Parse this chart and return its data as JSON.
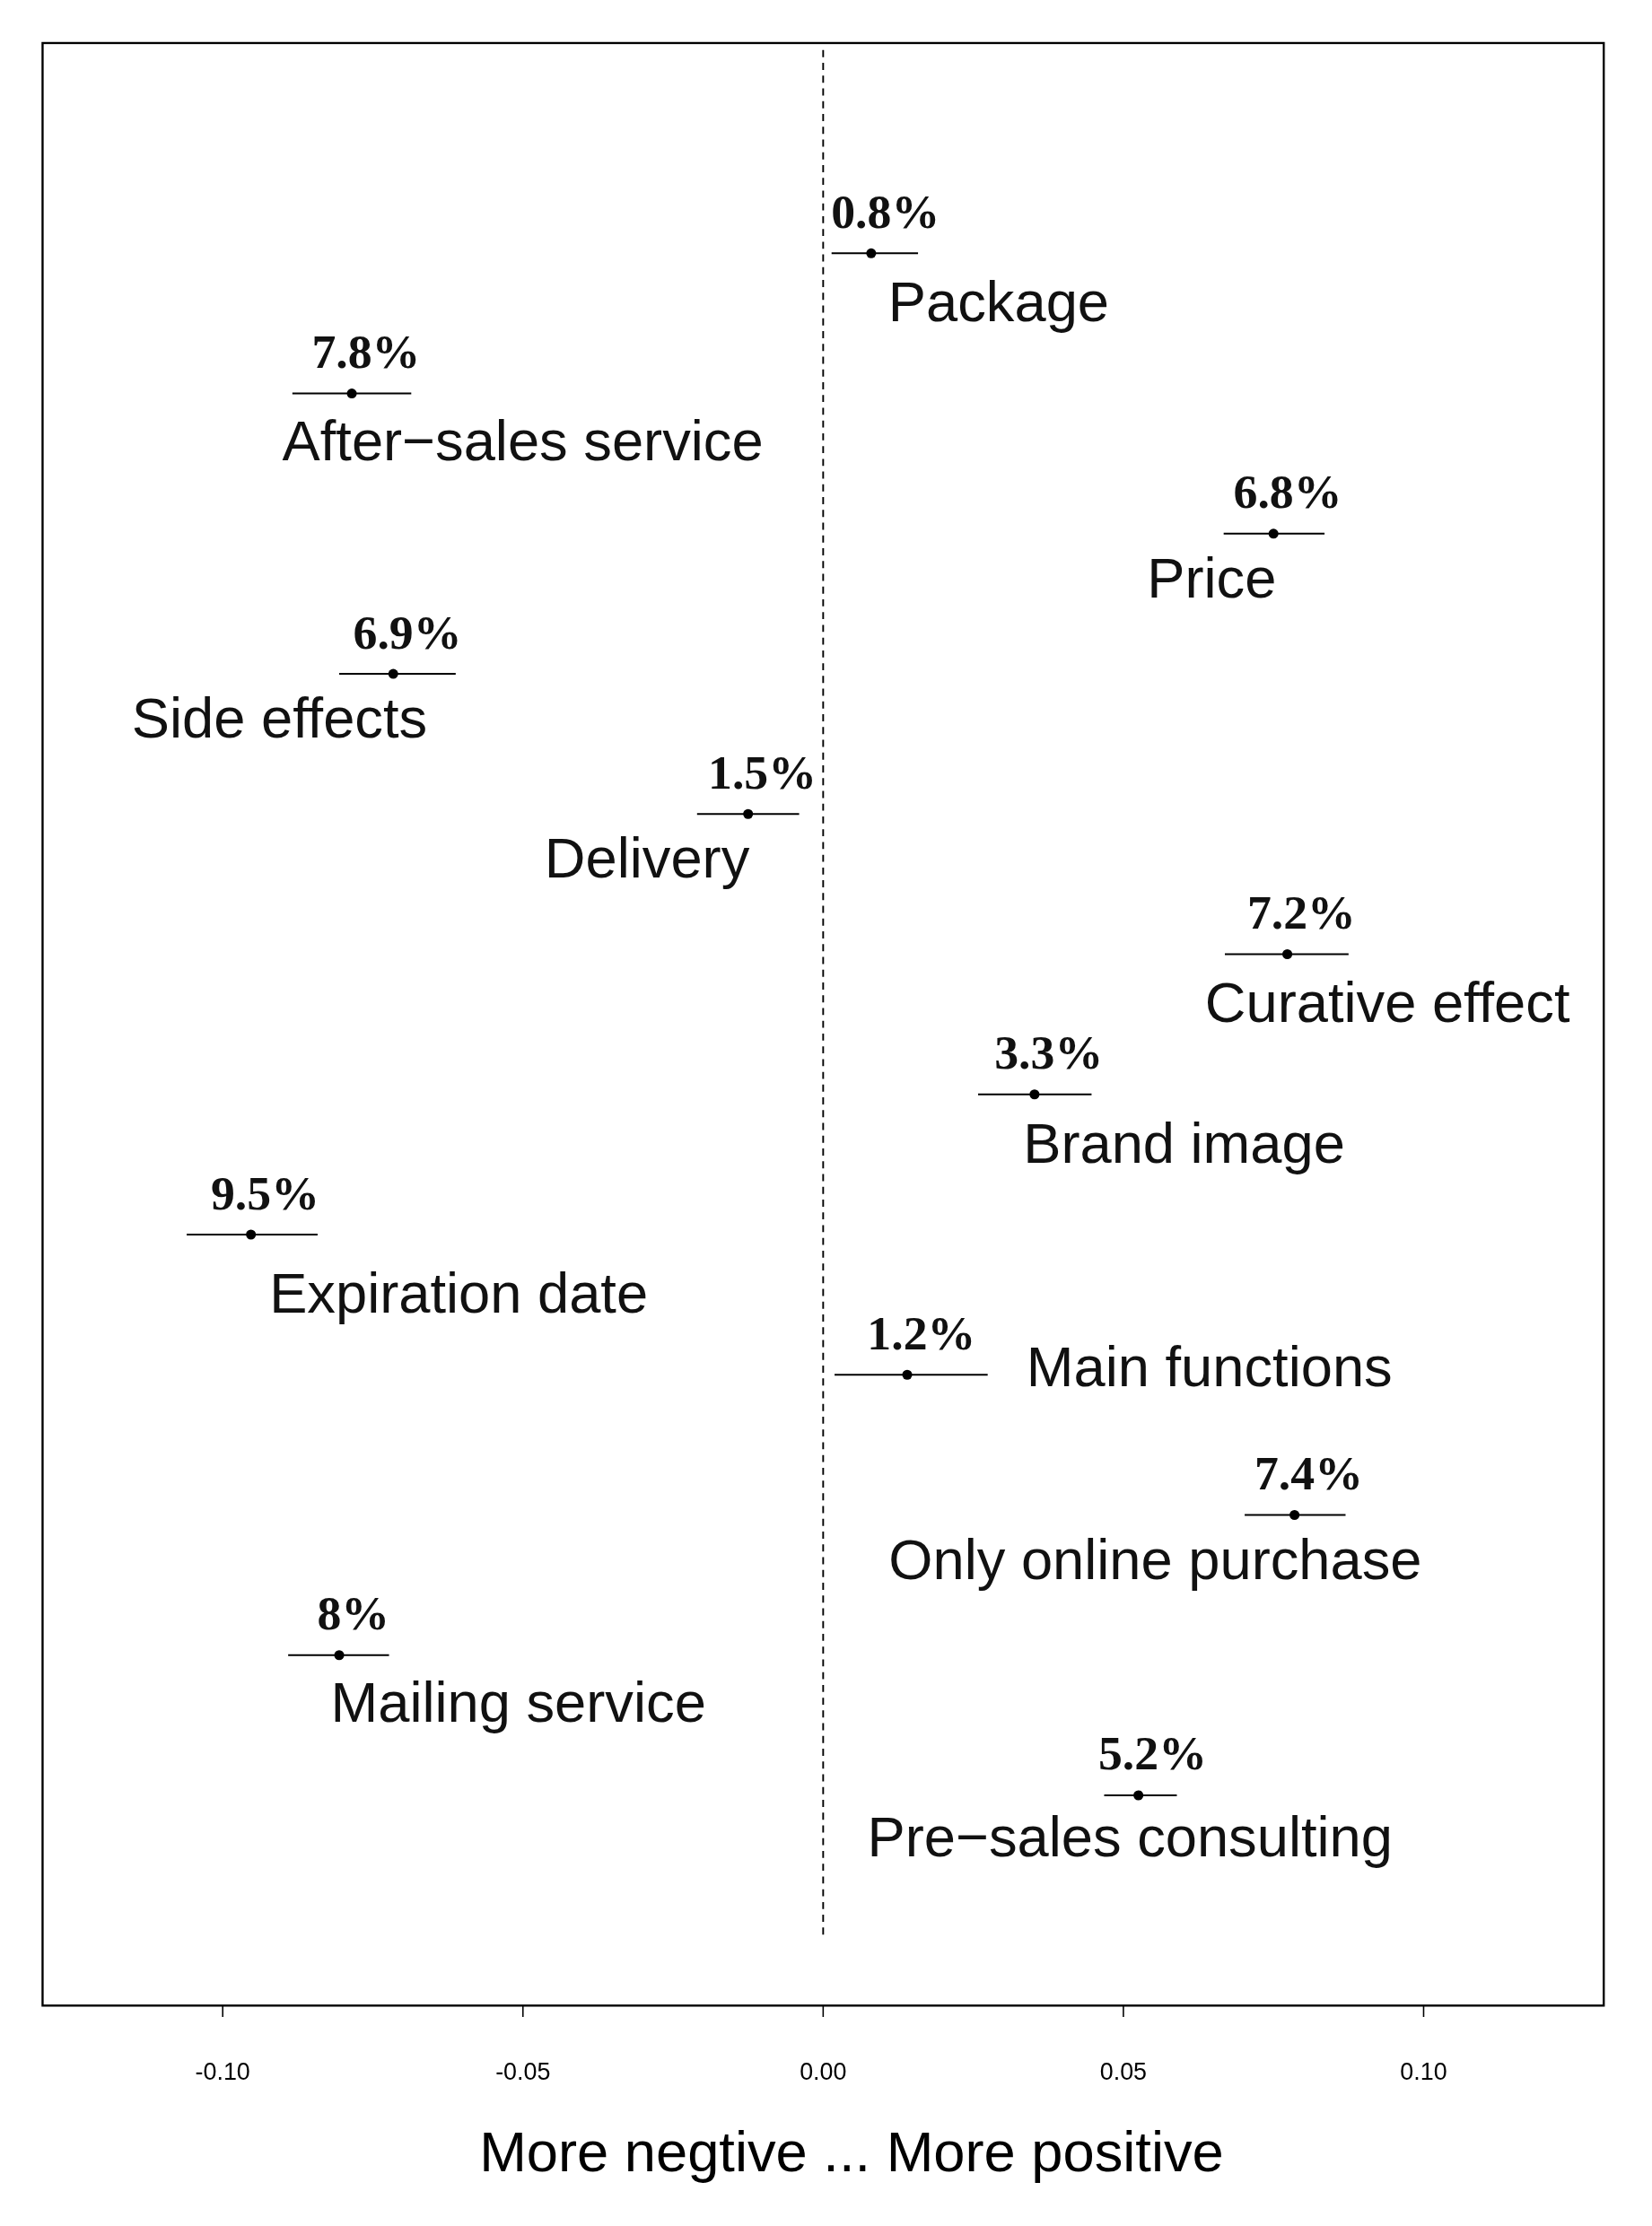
{
  "chart_data": {
    "type": "scatter",
    "orientation": "horizontal",
    "xlabel": "More negtive ... More positive",
    "categories": [
      "Package",
      "After−sales service",
      "Price",
      "Side effects",
      "Delivery",
      "Curative effect",
      "Brand image",
      "Expiration date",
      "Main functions",
      "Only online purchase",
      "Mailing service",
      "Pre−sales consulting"
    ],
    "values": [
      0.008,
      -0.0785,
      0.075,
      -0.0716,
      -0.0125,
      0.0773,
      0.0352,
      -0.0953,
      0.014,
      0.0785,
      -0.0806,
      0.0525
    ],
    "errors": [
      [
        0.0014,
        0.0158
      ],
      [
        -0.0884,
        -0.0686
      ],
      [
        0.0667,
        0.0835
      ],
      [
        -0.0806,
        -0.0612
      ],
      [
        -0.021,
        -0.004
      ],
      [
        0.0669,
        0.0875
      ],
      [
        0.0258,
        0.0447
      ],
      [
        -0.106,
        -0.0842
      ],
      [
        0.0019,
        0.0274
      ],
      [
        0.0702,
        0.087
      ],
      [
        -0.0891,
        -0.0723
      ],
      [
        0.0468,
        0.0589
      ]
    ],
    "annotations": [
      "0.8%",
      "7.8%",
      "6.8%",
      "6.9%",
      "1.5%",
      "7.2%",
      "3.3%",
      "9.5%",
      "1.2%",
      "7.4%",
      "8%",
      "5.2%"
    ],
    "color": "#000000",
    "marker": "circle",
    "xlim": [
      -0.13,
      0.13
    ],
    "xticks": [
      {
        "value": -0.1,
        "label": "-0.10"
      },
      {
        "value": -0.05,
        "label": "-0.05"
      },
      {
        "value": 0,
        "label": "0.00"
      },
      {
        "value": 0.05,
        "label": "0.05"
      },
      {
        "value": 0.1,
        "label": "0.10"
      }
    ],
    "tick_labels": "x",
    "ref_lines": [
      {
        "axis": "x",
        "value": 0,
        "line_style": "dashed",
        "color": "#000000"
      }
    ],
    "grid": false
  }
}
